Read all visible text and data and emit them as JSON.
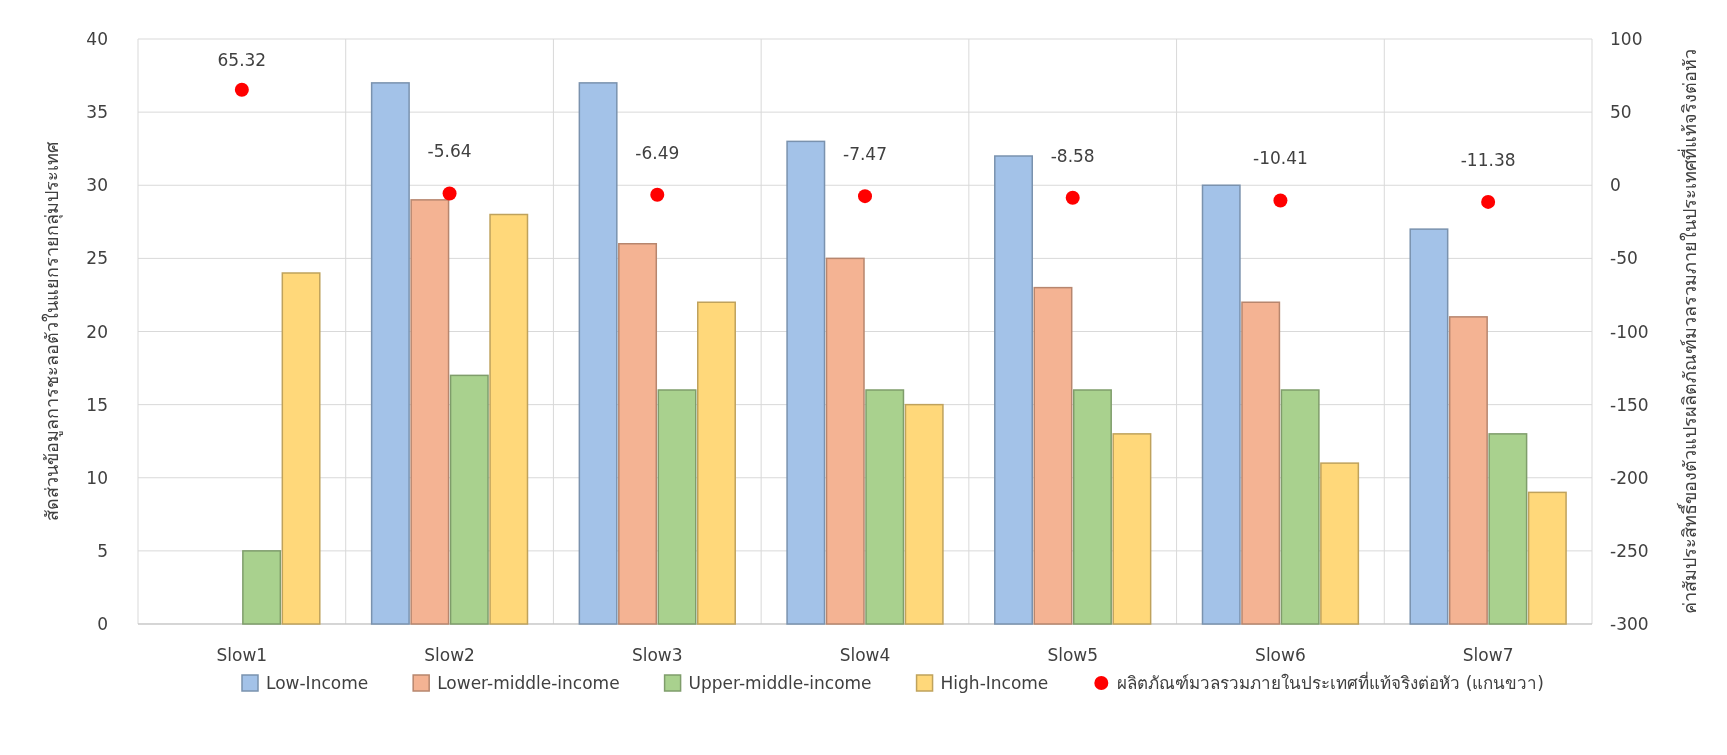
{
  "chart_data": {
    "type": "bar",
    "categories": [
      "Slow1",
      "Slow2",
      "Slow3",
      "Slow4",
      "Slow5",
      "Slow6",
      "Slow7"
    ],
    "ylabel": "สัดส่วนข้อมูลการชะลอตัวในแยกรายกลุ่มประเทศ",
    "y2label": "ค่าสัมประสิทธิ์ของตัวแปรผลิตภัณฑ์มวลรวมภายในประเทศที่แท้จริงต่อหัว",
    "ylim": [
      0,
      40
    ],
    "yticks": [
      0,
      5,
      10,
      15,
      20,
      25,
      30,
      35,
      40
    ],
    "y2lim": [
      -300,
      100
    ],
    "y2ticks": [
      -300,
      -250,
      -200,
      -150,
      -100,
      -50,
      0,
      50,
      100
    ],
    "grid": true,
    "legend": "bottom",
    "series": [
      {
        "name": "Low-Income",
        "color": "#a3c2e8",
        "values": [
          null,
          37,
          37,
          33,
          32,
          30,
          27
        ]
      },
      {
        "name": "Lower-middle-income",
        "color": "#f4b393",
        "values": [
          null,
          29,
          26,
          25,
          23,
          22,
          21
        ]
      },
      {
        "name": "Upper-middle-income",
        "color": "#a9d18e",
        "values": [
          5,
          17,
          16,
          16,
          16,
          16,
          13
        ]
      },
      {
        "name": "High-Income",
        "color": "#ffd87a",
        "values": [
          24,
          28,
          22,
          15,
          13,
          11,
          9
        ]
      },
      {
        "name": "ผลิตภัณฑ์มวลรวมภายในประเทศที่แท้จริงต่อหัว (แกนขวา)",
        "type": "scatter",
        "axis": "y2",
        "marker": "circle",
        "color": "#ff0000",
        "values": [
          65.32,
          -5.64,
          -6.49,
          -7.47,
          -8.58,
          -10.41,
          -11.38
        ],
        "value_labels": [
          "65.32",
          "-5.64",
          "-6.49",
          "-7.47",
          "-8.58",
          "-10.41",
          "-11.38"
        ]
      }
    ]
  }
}
